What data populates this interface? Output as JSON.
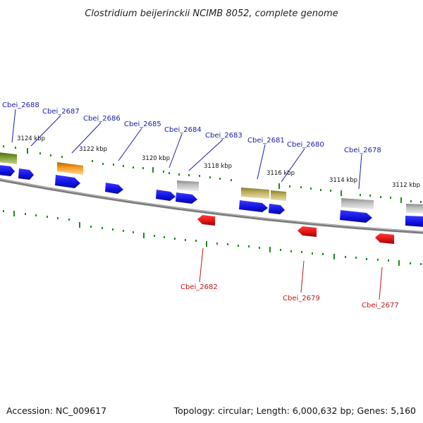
{
  "title": "Clostridium beijerinckii NCIMB 8052, complete genome",
  "footer": {
    "accession": "Accession: NC_009617",
    "summary": "Topology: circular; Length: 6,000,632 bp; Genes: 5,160"
  },
  "colors": {
    "backbone": "#8c8c8c",
    "tick": "#1a8a1a",
    "cds_forward": "#1414e6",
    "cds_reverse": "#e61414",
    "gene_olive": "#6e8c28",
    "gene_orange": "#f0900a",
    "gene_khaki": "#b4a650",
    "gene_gray": "#b4b4b4",
    "label_blue": "#1a1aa8",
    "label_red": "#c41414"
  },
  "tick_labels": [
    "3124 kbp",
    "3122 kbp",
    "3120 kbp",
    "3118 kbp",
    "3116 kbp",
    "3114 kbp",
    "3112 kbp"
  ],
  "gene_labels_forward": [
    "Cbei_2688",
    "Cbei_2687",
    "Cbei_2686",
    "Cbei_2685",
    "Cbei_2684",
    "Cbei_2683",
    "Cbei_2681",
    "Cbei_2680",
    "Cbei_2678"
  ],
  "gene_labels_reverse": [
    "Cbei_2682",
    "Cbei_2679",
    "Cbei_2677"
  ]
}
